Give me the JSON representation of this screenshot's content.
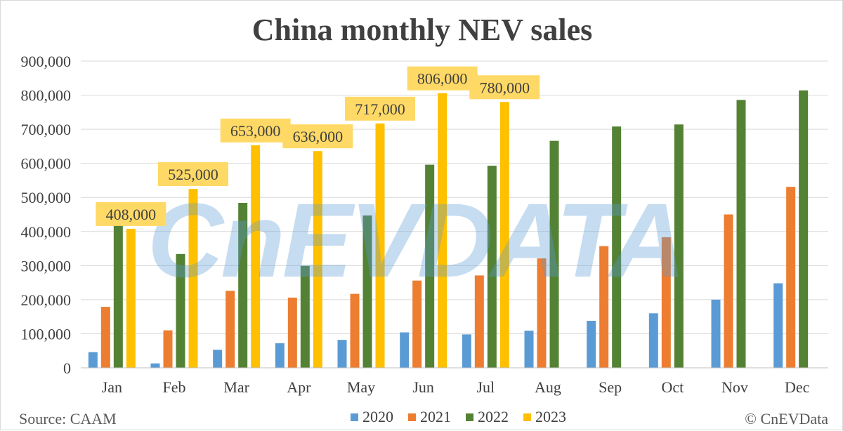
{
  "chart_data": {
    "type": "bar",
    "title": "China monthly NEV sales",
    "categories": [
      "Jan",
      "Feb",
      "Mar",
      "Apr",
      "May",
      "Jun",
      "Jul",
      "Aug",
      "Sep",
      "Oct",
      "Nov",
      "Dec"
    ],
    "series": [
      {
        "name": "2020",
        "color": "#5b9bd5",
        "values": [
          46000,
          13000,
          53000,
          72000,
          82000,
          104000,
          98000,
          109000,
          138000,
          160000,
          200000,
          248000
        ]
      },
      {
        "name": "2021",
        "color": "#ed7d31",
        "values": [
          179000,
          110000,
          226000,
          206000,
          217000,
          256000,
          271000,
          321000,
          357000,
          383000,
          450000,
          531000
        ]
      },
      {
        "name": "2022",
        "color": "#548235",
        "values": [
          431000,
          334000,
          484000,
          299000,
          447000,
          596000,
          593000,
          666000,
          708000,
          714000,
          786000,
          814000
        ]
      },
      {
        "name": "2023",
        "color": "#ffc000",
        "values": [
          408000,
          525000,
          653000,
          636000,
          717000,
          806000,
          780000,
          null,
          null,
          null,
          null,
          null
        ]
      }
    ],
    "data_labels": {
      "series": "2023",
      "labels": [
        "408,000",
        "525,000",
        "653,000",
        "636,000",
        "717,000",
        "806,000",
        "780,000"
      ],
      "box_color": "#ffd966"
    },
    "y_ticks": [
      "0",
      "100,000",
      "200,000",
      "300,000",
      "400,000",
      "500,000",
      "600,000",
      "700,000",
      "800,000",
      "900,000"
    ],
    "ylim": [
      0,
      900000
    ],
    "grid": true,
    "legend_position": "bottom"
  },
  "watermark": "CnEVDATA",
  "footer": {
    "source": "Source: CAAM",
    "copyright": "© CnEVData"
  }
}
